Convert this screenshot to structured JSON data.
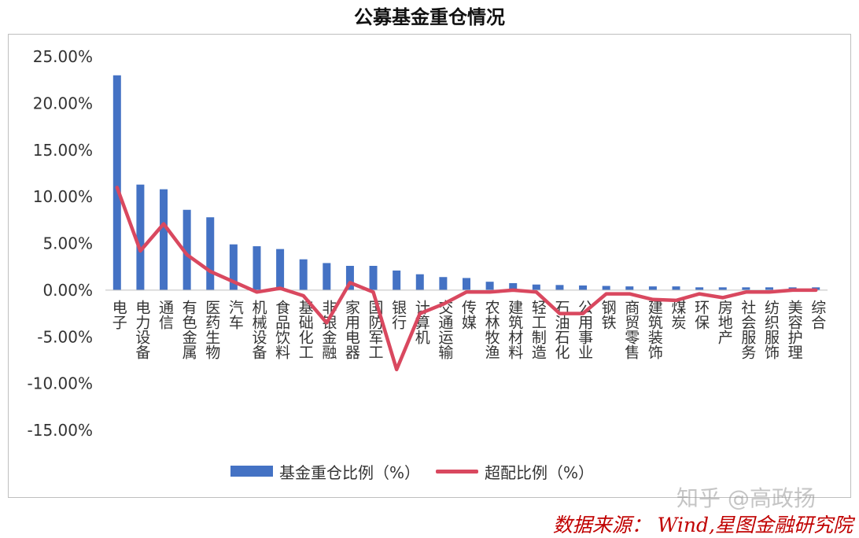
{
  "title": "公募基金重仓情况",
  "source": "数据来源： Wind,星图金融研究院",
  "watermark": "知乎 @高政扬",
  "colors": {
    "bar": "#4472c4",
    "line": "#d9485f",
    "source": "#c00000"
  },
  "chart_data": {
    "type": "bar",
    "title": "公募基金重仓情况",
    "xlabel": "",
    "ylabel": "",
    "ylim": [
      -15,
      25
    ],
    "y_ticks": [
      "-15.00%",
      "-10.00%",
      "-5.00%",
      "0.00%",
      "5.00%",
      "10.00%",
      "15.00%",
      "20.00%",
      "25.00%"
    ],
    "y_tick_values": [
      -15,
      -10,
      -5,
      0,
      5,
      10,
      15,
      20,
      25
    ],
    "grid": false,
    "legend_position": "bottom",
    "categories": [
      "电子",
      "电力设备",
      "通信",
      "有色金属",
      "医药生物",
      "汽车",
      "机械设备",
      "食品饮料",
      "基础化工",
      "非银金融",
      "家用电器",
      "国防军工",
      "银行",
      "计算机",
      "交通运输",
      "传媒",
      "农林牧渔",
      "建筑材料",
      "轻工制造",
      "石油石化",
      "公用事业",
      "钢铁",
      "商贸零售",
      "建筑装饰",
      "煤炭",
      "环保",
      "房地产",
      "社会服务",
      "纺织服饰",
      "美容护理",
      "综合"
    ],
    "series": [
      {
        "name": "基金重仓比例（%）",
        "kind": "bar",
        "values": [
          23.0,
          11.3,
          10.8,
          8.6,
          7.8,
          4.9,
          4.7,
          4.4,
          3.3,
          2.9,
          2.6,
          2.6,
          2.1,
          1.7,
          1.4,
          1.3,
          0.9,
          0.75,
          0.6,
          0.55,
          0.5,
          0.45,
          0.4,
          0.4,
          0.4,
          0.3,
          0.3,
          0.3,
          0.3,
          0.3,
          0.3
        ]
      },
      {
        "name": "超配比例（%）",
        "kind": "line",
        "values": [
          11.0,
          4.2,
          7.1,
          3.8,
          2.0,
          0.9,
          -0.2,
          0.2,
          -0.6,
          -3.5,
          0.8,
          -0.2,
          -8.5,
          -2.5,
          -1.5,
          -0.2,
          -0.2,
          0.0,
          -0.2,
          -2.5,
          -2.5,
          -0.4,
          -0.4,
          -1.0,
          -1.1,
          -0.4,
          -0.8,
          -0.2,
          -0.2,
          0.0,
          0.0
        ]
      }
    ]
  }
}
